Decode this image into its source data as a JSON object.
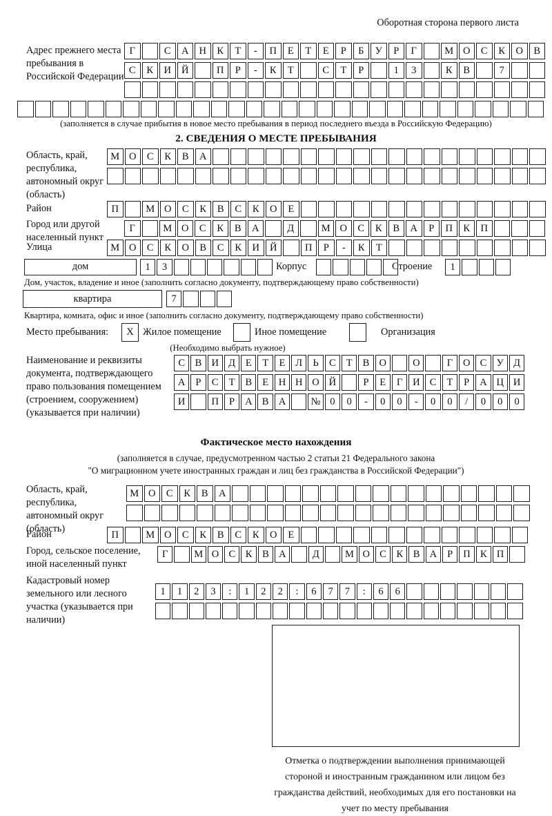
{
  "page": {
    "header_note": "Оборотная сторона первого листа"
  },
  "prev_address": {
    "label": "Адрес прежнего места пребывания в Российской Федерации",
    "row1": "Г САНКТ-ПЕТЕРБУРГ МОСКОВ",
    "row2": "СКИЙ ПР-КТ СТР 13 КВ 7",
    "row3": "",
    "row4": "",
    "note": "(заполняется в случае прибытия в новое место пребывания в период последнего въезда в Российскую Федерацию)"
  },
  "section2": {
    "title": "2. СВЕДЕНИЯ О МЕСТЕ ПРЕБЫВАНИЯ",
    "region": {
      "label": "Область, край, республика, автономный округ (область)",
      "row1": "МОСКВА",
      "row2": ""
    },
    "district": {
      "label": "Район",
      "row": "П МОСКВСКОЕ"
    },
    "city": {
      "label": "Город или другой населенный пункт",
      "row": "Г МОСКВА Д МОСКВАРПКП"
    },
    "street": {
      "label": "Улица",
      "row": "МОСКОВСКИЙ ПР-КТ"
    },
    "house": {
      "box_label": "дом",
      "cells": "13",
      "korpus_label": "Корпус",
      "korpus_cells": "",
      "stroenie_label": "Строение",
      "stroenie_cells": "1"
    },
    "house_note": "Дом, участок, владение и иное (заполнить согласно документу, подтверждающему право собственности)",
    "apartment": {
      "box_label": "квартира",
      "cells": "7"
    },
    "apartment_note": "Квартира, комната, офис и иное (заполнить согласно документу, подтверждающему право собственности)",
    "stay": {
      "label": "Место пребывания:",
      "marks": [
        "X",
        "",
        ""
      ],
      "options": [
        "Жилое помещение",
        "Иное помещение",
        "Организация"
      ],
      "note": "(Необходимо выбрать нужное)"
    },
    "doc": {
      "label": "Наименование и реквизиты документа, подтверждающего право пользования помещением (строением, сооружением) (указывается при наличии)",
      "row1": "СВИДЕТЕЛЬСТВО О ГОСУД",
      "row2": "АРСТВЕННОЙ РЕГИСТРАЦИ",
      "row3": "И ПРАВА №00-00-00/000"
    }
  },
  "actual_location": {
    "title": "Фактическое место нахождения",
    "note1": "(заполняется в случае, предусмотренном частью 2 статьи 21 Федерального закона",
    "note2": "\"О миграционном учете иностранных граждан и лиц без гражданства в Российской Федерации\")",
    "region": {
      "label": "Область, край, республика, автономный округ (область)",
      "row1": "МОСКВА",
      "row2": ""
    },
    "district": {
      "label": "Район",
      "row": "П МОСКВСКОЕ"
    },
    "city": {
      "label": "Город, сельское поселение, иной населенный пункт",
      "row": "Г МОСКВА Д МОСКВАРПКП"
    },
    "cadastre": {
      "label": "Кадастровый номер земельного или лесного участка (указывается при наличии)",
      "row1": "1123:122:677:66",
      "row2": ""
    },
    "stamp_note": "Отметка о подтверждении выполнения принимающей стороной и иностранным гражданином или лицом без гражданства действий, необходимых для его постановки на учет по месту пребывания"
  }
}
